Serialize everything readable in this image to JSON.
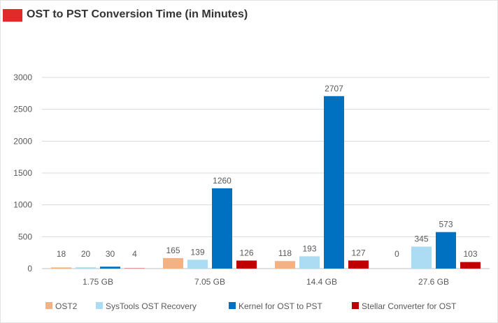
{
  "header": {
    "title": "OST to PST Conversion Time (in Minutes)",
    "accent_color": "#e02b2b"
  },
  "chart_data": {
    "type": "bar",
    "title": "OST to PST Conversion Time (in Minutes)",
    "xlabel": "",
    "ylabel": "",
    "categories": [
      "1.75 GB",
      "7.05 GB",
      "14.4 GB",
      "27.6 GB"
    ],
    "ylim": [
      0,
      3000
    ],
    "yticks": [
      "0",
      "500",
      "1000",
      "1500",
      "2000",
      "2500",
      "3000"
    ],
    "grid": true,
    "legend_position": "bottom",
    "series": [
      {
        "name": "OST2",
        "color": "#f4b183",
        "values": [
          18,
          165,
          118,
          0
        ],
        "labels": [
          "18",
          "165",
          "118",
          "0"
        ]
      },
      {
        "name": "SysTools OST Recovery",
        "color": "#abdcf3",
        "values": [
          20,
          139,
          193,
          345
        ],
        "labels": [
          "20",
          "139",
          "193",
          "345"
        ]
      },
      {
        "name": "Kernel for OST to PST",
        "color": "#0070c0",
        "values": [
          30,
          1260,
          2707,
          573
        ],
        "labels": [
          "30",
          "1260",
          "2707",
          "573"
        ]
      },
      {
        "name": "Stellar Converter for OST",
        "color": "#c00000",
        "values": [
          4,
          126,
          127,
          103
        ],
        "labels": [
          "4",
          "126",
          "127",
          "103"
        ]
      }
    ]
  }
}
